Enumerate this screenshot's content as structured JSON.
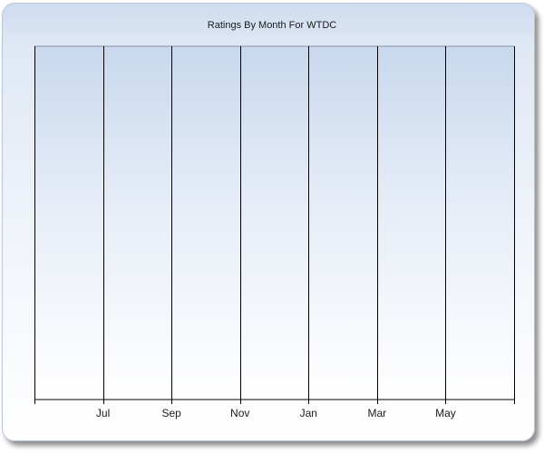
{
  "chart_data": {
    "type": "bar",
    "title": "Ratings By Month For WTDC",
    "xlabel": "",
    "ylabel": "",
    "categories": [
      "Jul",
      "Sep",
      "Nov",
      "Jan",
      "Mar",
      "May"
    ],
    "series": [],
    "grid": true,
    "legend": "none"
  },
  "colors": {
    "gridline": "#000000",
    "background_top": "#cfdcef",
    "background_bottom": "#ffffff"
  }
}
